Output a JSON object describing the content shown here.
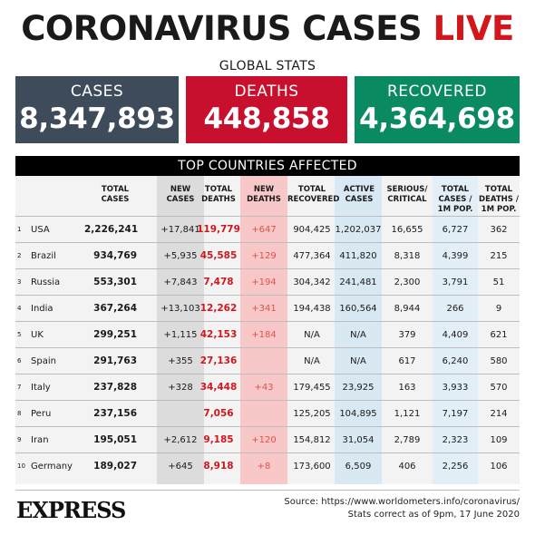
{
  "headline": {
    "main": "CORONAVIRUS CASES",
    "live": "LIVE"
  },
  "global": {
    "label": "GLOBAL STATS",
    "cases": {
      "label": "CASES",
      "value": "8,347,893"
    },
    "deaths": {
      "label": "DEATHS",
      "value": "448,858"
    },
    "recovered": {
      "label": "RECOVERED",
      "value": "4,364,698"
    }
  },
  "table": {
    "title": "TOP COUNTRIES AFFECTED",
    "headers": {
      "total_cases": "TOTAL CASES",
      "new_cases": "NEW CASES",
      "total_deaths": "TOTAL DEATHS",
      "new_deaths": "NEW DEATHS",
      "total_recovered": "TOTAL RECOVERED",
      "active_cases": "ACTIVE CASES",
      "serious": "SERIOUS/ CRITICAL",
      "cases_1m": "TOTAL CASES / 1M POP.",
      "deaths_1m": "TOTAL DEATHS / 1M POP."
    },
    "rows": [
      {
        "rank": "1",
        "country": "USA",
        "total_cases": "2,226,241",
        "new_cases": "+17,841",
        "total_deaths": "119,779",
        "new_deaths": "+647",
        "total_recovered": "904,425",
        "active_cases": "1,202,037",
        "serious": "16,655",
        "cases_1m": "6,727",
        "deaths_1m": "362"
      },
      {
        "rank": "2",
        "country": "Brazil",
        "total_cases": "934,769",
        "new_cases": "+5,935",
        "total_deaths": "45,585",
        "new_deaths": "+129",
        "total_recovered": "477,364",
        "active_cases": "411,820",
        "serious": "8,318",
        "cases_1m": "4,399",
        "deaths_1m": "215"
      },
      {
        "rank": "3",
        "country": "Russia",
        "total_cases": "553,301",
        "new_cases": "+7,843",
        "total_deaths": "7,478",
        "new_deaths": "+194",
        "total_recovered": "304,342",
        "active_cases": "241,481",
        "serious": "2,300",
        "cases_1m": "3,791",
        "deaths_1m": "51"
      },
      {
        "rank": "4",
        "country": "India",
        "total_cases": "367,264",
        "new_cases": "+13,103",
        "total_deaths": "12,262",
        "new_deaths": "+341",
        "total_recovered": "194,438",
        "active_cases": "160,564",
        "serious": "8,944",
        "cases_1m": "266",
        "deaths_1m": "9"
      },
      {
        "rank": "5",
        "country": "UK",
        "total_cases": "299,251",
        "new_cases": "+1,115",
        "total_deaths": "42,153",
        "new_deaths": "+184",
        "total_recovered": "N/A",
        "active_cases": "N/A",
        "serious": "379",
        "cases_1m": "4,409",
        "deaths_1m": "621"
      },
      {
        "rank": "6",
        "country": "Spain",
        "total_cases": "291,763",
        "new_cases": "+355",
        "total_deaths": "27,136",
        "new_deaths": "",
        "total_recovered": "N/A",
        "active_cases": "N/A",
        "serious": "617",
        "cases_1m": "6,240",
        "deaths_1m": "580"
      },
      {
        "rank": "7",
        "country": "Italy",
        "total_cases": "237,828",
        "new_cases": "+328",
        "total_deaths": "34,448",
        "new_deaths": "+43",
        "total_recovered": "179,455",
        "active_cases": "23,925",
        "serious": "163",
        "cases_1m": "3,933",
        "deaths_1m": "570"
      },
      {
        "rank": "8",
        "country": "Peru",
        "total_cases": "237,156",
        "new_cases": "",
        "total_deaths": "7,056",
        "new_deaths": "",
        "total_recovered": "125,205",
        "active_cases": "104,895",
        "serious": "1,121",
        "cases_1m": "7,197",
        "deaths_1m": "214"
      },
      {
        "rank": "9",
        "country": "Iran",
        "total_cases": "195,051",
        "new_cases": "+2,612",
        "total_deaths": "9,185",
        "new_deaths": "+120",
        "total_recovered": "154,812",
        "active_cases": "31,054",
        "serious": "2,789",
        "cases_1m": "2,323",
        "deaths_1m": "109"
      },
      {
        "rank": "10",
        "country": "Germany",
        "total_cases": "189,027",
        "new_cases": "+645",
        "total_deaths": "8,918",
        "new_deaths": "+8",
        "total_recovered": "173,600",
        "active_cases": "6,509",
        "serious": "406",
        "cases_1m": "2,256",
        "deaths_1m": "106"
      }
    ]
  },
  "footer": {
    "logo": "EXPRESS",
    "source": "Source: https://www.worldometers.info/coronavirus/",
    "note": "Stats correct as of 9pm, 17 June 2020"
  },
  "colors": {
    "cases": "#3e4b5a",
    "deaths": "#c8102e",
    "recovered": "#0a8a63",
    "accent_red": "#d3161c"
  }
}
